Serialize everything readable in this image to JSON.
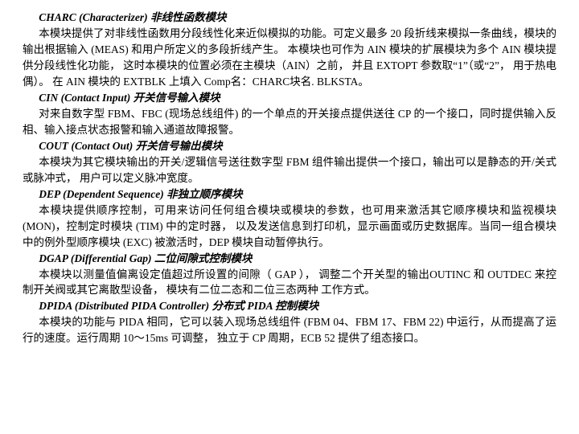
{
  "sections": {
    "charc": {
      "title": "CHARC (Characterizer) 非线性函数模块",
      "body": "本模块提供了对非线性函数用分段线性化来近似模拟的功能。可定义最多 20 段折线来模拟一条曲线，模块的输出根据输入 (MEAS) 和用户所定义的多段折线产生。 本模块也可作为 AIN 模块的扩展模块为多个 AIN 模块提供分段线性化功能， 这时本模块的位置必须在主模块（AIN）之前， 并且 EXTOPT 参数取“1”（或“2”， 用于热电偶）。 在 AIN 模块的 EXTBLK 上填入 Comp名：CHARC块名. BLKSTA。"
    },
    "cin": {
      "title": "CIN (Contact Input) 开关信号输入模块",
      "body": "对来自数字型 FBM、FBC (现场总线组件) 的一个单点的开关接点提供送往 CP 的一个接口，同时提供输入反相、输入接点状态报警和输入通道故障报警。"
    },
    "cout": {
      "title": "COUT (Contact Out) 开关信号输出模块",
      "body": "本模块为其它模块输出的开关/逻辑信号送往数字型 FBM 组件输出提供一个接口，输出可以是静态的开/关式或脉冲式， 用户可以定义脉冲宽度。"
    },
    "dep": {
      "title": "DEP (Dependent Sequence) 非独立顺序模块",
      "body": "本模块提供顺序控制，可用来访问任何组合模块或模块的参数，也可用来激活其它顺序模块和监视模块 (MON)，控制定时模块 (TIM) 中的定时器， 以及发送信息到打印机，显示画面或历史数据库。当同一组合模块中的例外型顺序模块 (EXC) 被激活时，DEP 模块自动暂停执行。"
    },
    "dgap": {
      "title": "DGAP (Differential Gap) 二位间隙式控制模块",
      "body": "本模块以测量值偏离设定值超过所设置的间隙（ GAP ）， 调整二个开关型的输出OUTINC 和 OUTDEC 来控制开关阀或其它离散型设备， 模块有二位二态和二位三态两种 工作方式。"
    },
    "dpida": {
      "title": "DPIDA (Distributed PIDA Controller) 分布式 PIDA 控制模块",
      "body": "本模块的功能与 PIDA 相同，它可以装入现场总线组件 (FBM 04、FBM 17、FBM 22) 中运行，从而提高了运行的速度。运行周期 10～15ms 可调整， 独立于 CP 周期，ECB 52 提供了组态接口。"
    }
  }
}
